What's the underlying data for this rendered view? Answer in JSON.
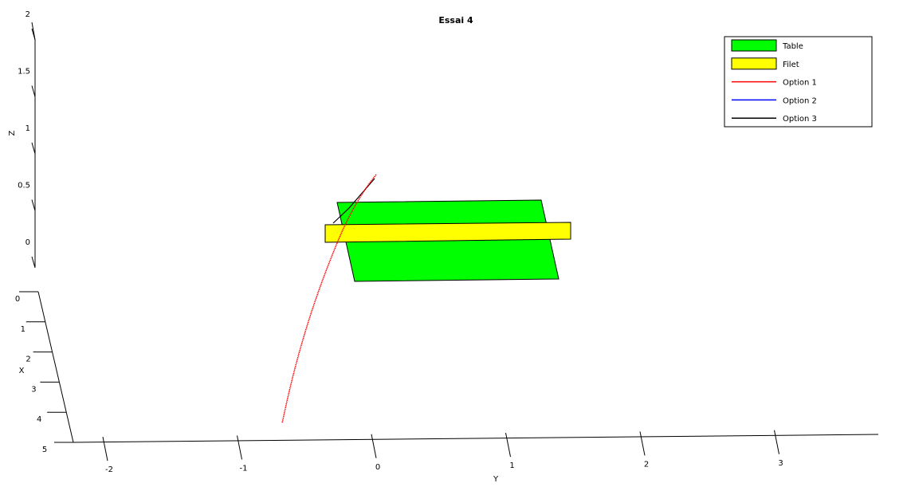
{
  "chart_data": {
    "type": "3d-line",
    "title": "Essai 4",
    "xlabel": "X",
    "ylabel": "Y",
    "zlabel": "Z",
    "x_ticks": [
      "0",
      "1",
      "2",
      "3",
      "4",
      "5"
    ],
    "y_ticks": [
      "-2",
      "-1",
      "0",
      "1",
      "2",
      "3"
    ],
    "z_ticks": [
      "0",
      "0.5",
      "1",
      "1.5",
      "2"
    ],
    "xlim": [
      0,
      5
    ],
    "ylim": [
      -2,
      3
    ],
    "zlim": [
      0,
      2
    ],
    "grid": false,
    "legend_position": "top-right",
    "legend": [
      {
        "label": "Table",
        "kind": "patch",
        "color": "#00ff00"
      },
      {
        "label": "Filet",
        "kind": "patch",
        "color": "#ffff00"
      },
      {
        "label": "Option 1",
        "kind": "line",
        "color": "#ff0000"
      },
      {
        "label": "Option 2",
        "kind": "line",
        "color": "#0000ff"
      },
      {
        "label": "Option 3",
        "kind": "line",
        "color": "#000000"
      }
    ],
    "surfaces": [
      {
        "name": "Table",
        "color": "#00ff00"
      },
      {
        "name": "Filet",
        "color": "#ffff00"
      }
    ],
    "series": [
      {
        "name": "Option 1",
        "color": "#ff0000"
      },
      {
        "name": "Option 2",
        "color": "#0000ff"
      },
      {
        "name": "Option 3",
        "color": "#000000"
      }
    ]
  }
}
